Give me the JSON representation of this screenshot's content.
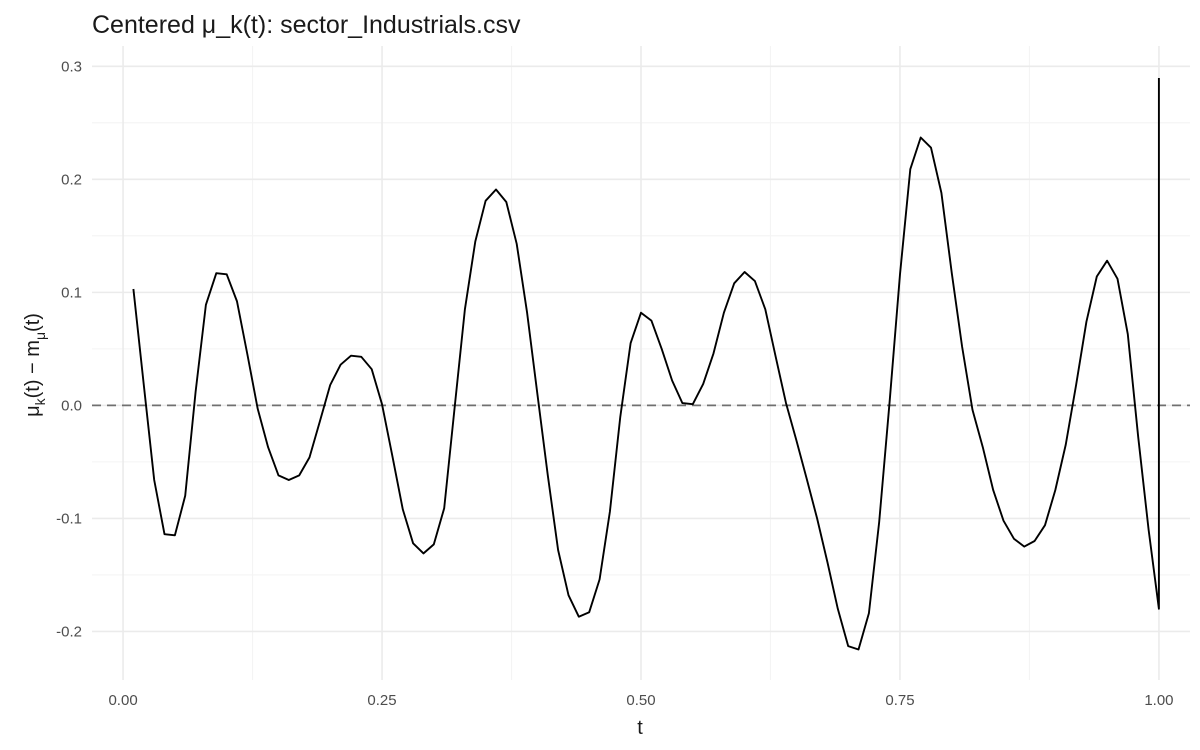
{
  "chart_data": {
    "type": "line",
    "title": "Centered μ_k(t): sector_Industrials.csv",
    "xlabel": "t",
    "ylabel": {
      "mu": "μ",
      "k": "k",
      "t1": "(t) − m",
      "mu_sub": "μ",
      "t2": "(t)"
    },
    "xlim": [
      -0.03,
      1.03
    ],
    "ylim": [
      -0.243,
      0.318
    ],
    "x_ticks": [
      0.0,
      0.25,
      0.5,
      0.75,
      1.0
    ],
    "x_tick_labels": [
      "0.00",
      "0.25",
      "0.50",
      "0.75",
      "1.00"
    ],
    "y_ticks": [
      -0.2,
      -0.1,
      0.0,
      0.1,
      0.2,
      0.3
    ],
    "y_tick_labels": [
      "-0.2",
      "-0.1",
      "0.0",
      "0.1",
      "0.2",
      "0.3"
    ],
    "grid": true,
    "reference_line": {
      "y": 0,
      "style": "dashed"
    },
    "series": [
      {
        "x": [
          0.01,
          0.02,
          0.03,
          0.04,
          0.05,
          0.06,
          0.07,
          0.08,
          0.09,
          0.1,
          0.11,
          0.12,
          0.13,
          0.14,
          0.15,
          0.16,
          0.17,
          0.18,
          0.19,
          0.2,
          0.21,
          0.22,
          0.23,
          0.24,
          0.25,
          0.26,
          0.27,
          0.28,
          0.29,
          0.3,
          0.31,
          0.32,
          0.33,
          0.34,
          0.35,
          0.36,
          0.37,
          0.38,
          0.39,
          0.4,
          0.41,
          0.42,
          0.43,
          0.44,
          0.45,
          0.46,
          0.47,
          0.48,
          0.49,
          0.5,
          0.51,
          0.52,
          0.53,
          0.54,
          0.55,
          0.56,
          0.57,
          0.58,
          0.59,
          0.6,
          0.61,
          0.62,
          0.63,
          0.64,
          0.65,
          0.66,
          0.67,
          0.68,
          0.69,
          0.7,
          0.71,
          0.72,
          0.73,
          0.74,
          0.75,
          0.76,
          0.77,
          0.78,
          0.79,
          0.8,
          0.81,
          0.82,
          0.83,
          0.84,
          0.85,
          0.86,
          0.87,
          0.88,
          0.89,
          0.9,
          0.91,
          0.92,
          0.93,
          0.94,
          0.95,
          0.96,
          0.97,
          0.98,
          0.99,
          1.0
        ],
        "y": [
          0.103,
          0.018,
          -0.066,
          -0.114,
          -0.115,
          -0.08,
          0.012,
          0.089,
          0.117,
          0.116,
          0.092,
          0.045,
          -0.003,
          -0.037,
          -0.062,
          -0.066,
          -0.062,
          -0.046,
          -0.014,
          0.018,
          0.036,
          0.044,
          0.043,
          0.032,
          0.001,
          -0.045,
          -0.092,
          -0.122,
          -0.131,
          -0.123,
          -0.091,
          -0.003,
          0.085,
          0.145,
          0.181,
          0.191,
          0.18,
          0.143,
          0.082,
          0.01,
          -0.062,
          -0.128,
          -0.168,
          -0.187,
          -0.183,
          -0.154,
          -0.094,
          -0.01,
          0.055,
          0.082,
          0.075,
          0.05,
          0.022,
          0.002,
          0.001,
          0.019,
          0.046,
          0.082,
          0.108,
          0.118,
          0.11,
          0.085,
          0.043,
          0.002,
          -0.031,
          -0.065,
          -0.1,
          -0.139,
          -0.18,
          -0.213,
          -0.216,
          -0.184,
          -0.103,
          0.003,
          0.116,
          0.209,
          0.237,
          0.228,
          0.188,
          0.117,
          0.052,
          -0.004,
          -0.037,
          -0.075,
          -0.102,
          -0.118,
          -0.125,
          -0.12,
          -0.106,
          -0.075,
          -0.035,
          0.018,
          0.074,
          0.114,
          0.128,
          0.112,
          0.063,
          -0.028,
          -0.11,
          -0.18
        ]
      }
    ]
  }
}
